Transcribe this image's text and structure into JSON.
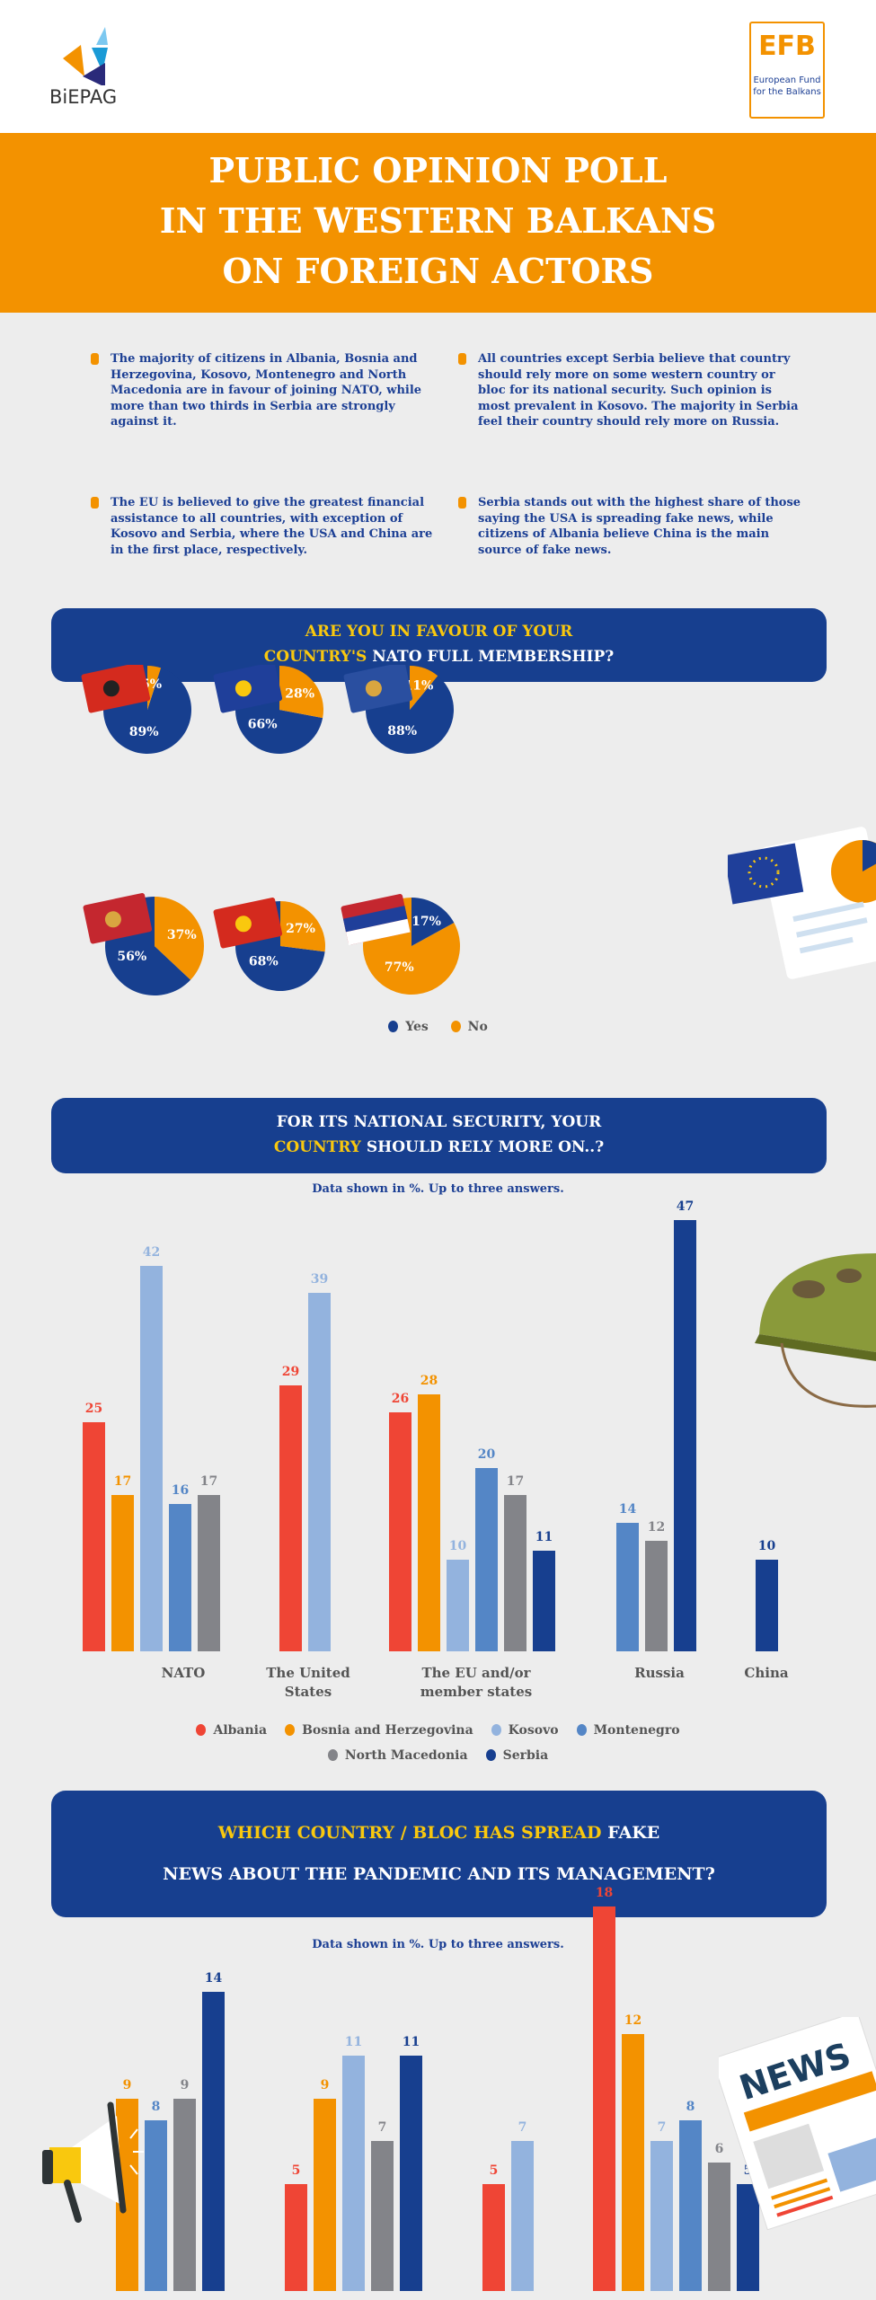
{
  "logos": {
    "left": "BiEPAG",
    "right_mark": "EFB",
    "right_line1": "European Fund",
    "right_line2": "for the Balkans"
  },
  "title": {
    "line1": "PUBLIC OPINION POLL",
    "line2": "IN THE WESTERN BALKANS",
    "line3": "ON FOREIGN ACTORS"
  },
  "bullets": [
    "The majority of citizens in Albania, Bosnia and Herzegovina, Kosovo, Montenegro and North Macedonia are in favour of joining NATO, while more than two thirds in Serbia are strongly against it.",
    "All countries except Serbia believe that country should rely more on some western country or bloc for its national security. Such opinion is most prevalent in Kosovo. The majority in Serbia feel their country should rely more on Russia.",
    "The EU is believed to give the greatest financial assistance to all countries, with exception of Kosovo and Serbia, where the USA and China are in the first place, respectively.",
    "Serbia stands out with the highest share of those saying the USA is spreading fake news, while citizens of Albania believe China is the main source of fake news."
  ],
  "colors": {
    "orange": "#f39200",
    "navy": "#173f8f",
    "yellow": "#f9c80e",
    "Albania": "#ef4535",
    "Bosnia and Herzegovina": "#f39200",
    "Kosovo": "#93b3de",
    "Montenegro": "#5486c6",
    "North Macedonia": "#838489",
    "Serbia": "#173f8f",
    "Yes": "#173f8f",
    "No": "#f39200"
  },
  "chart_data": [
    {
      "type": "pie",
      "title_highlight": "ARE YOU IN FAVOUR OF YOUR",
      "title_rest": "NATO FULL MEMBERSHIP?",
      "title_highlight2": "COUNTRY'S",
      "legend": [
        "Yes",
        "No"
      ],
      "pies": [
        {
          "country": "Albania",
          "flag": "albania-flag",
          "yes": 89,
          "no": 5
        },
        {
          "country": "Bosnia and Herzegovina",
          "flag": "bosnia-flag",
          "yes": 66,
          "no": 28
        },
        {
          "country": "Kosovo",
          "flag": "kosovo-flag",
          "yes": 88,
          "no": 11
        },
        {
          "country": "Montenegro",
          "flag": "montenegro-flag",
          "yes": 56,
          "no": 37
        },
        {
          "country": "North Macedonia",
          "flag": "north-macedonia-flag",
          "yes": 68,
          "no": 27
        },
        {
          "country": "Serbia",
          "flag": "serbia-flag",
          "yes": 17,
          "no": 77
        }
      ]
    },
    {
      "type": "bar",
      "title_a": "FOR ITS NATIONAL SECURITY, YOUR",
      "title_b_highlight": "COUNTRY",
      "title_b_rest": "SHOULD RELY MORE ON..?",
      "subtitle": "Data shown in %. Up to three answers.",
      "categories": [
        "NATO",
        "The United States",
        "The EU and/or member states",
        "Russia",
        "China"
      ],
      "series": [
        {
          "name": "Albania",
          "values": [
            25,
            29,
            26,
            null,
            null
          ]
        },
        {
          "name": "Bosnia and Herzegovina",
          "values": [
            17,
            null,
            28,
            null,
            null
          ]
        },
        {
          "name": "Kosovo",
          "values": [
            42,
            39,
            10,
            null,
            null
          ]
        },
        {
          "name": "Montenegro",
          "values": [
            16,
            null,
            20,
            14,
            null
          ]
        },
        {
          "name": "North Macedonia",
          "values": [
            17,
            null,
            17,
            12,
            null
          ]
        },
        {
          "name": "Serbia",
          "values": [
            null,
            null,
            11,
            47,
            10
          ]
        }
      ],
      "legend": "bottom"
    },
    {
      "type": "bar",
      "title_a_highlight": "WHICH COUNTRY / BLOC HAS SPREAD",
      "title_a_rest": "FAKE",
      "title_b": "NEWS ABOUT THE PANDEMIC AND ITS MANAGEMENT?",
      "subtitle": "Data shown in %. Up to three answers.",
      "series": [
        {
          "name": "Albania",
          "values": [
            null,
            5,
            5,
            18
          ]
        },
        {
          "name": "Bosnia and Herzegovina",
          "values": [
            9,
            9,
            null,
            12
          ]
        },
        {
          "name": "Kosovo",
          "values": [
            null,
            11,
            7,
            7
          ]
        },
        {
          "name": "Montenegro",
          "values": [
            8,
            null,
            null,
            8
          ]
        },
        {
          "name": "North Macedonia",
          "values": [
            9,
            7,
            null,
            6
          ]
        },
        {
          "name": "Serbia",
          "values": [
            14,
            11,
            null,
            5
          ]
        }
      ]
    }
  ],
  "decor": {
    "news_label": "NEWS"
  }
}
